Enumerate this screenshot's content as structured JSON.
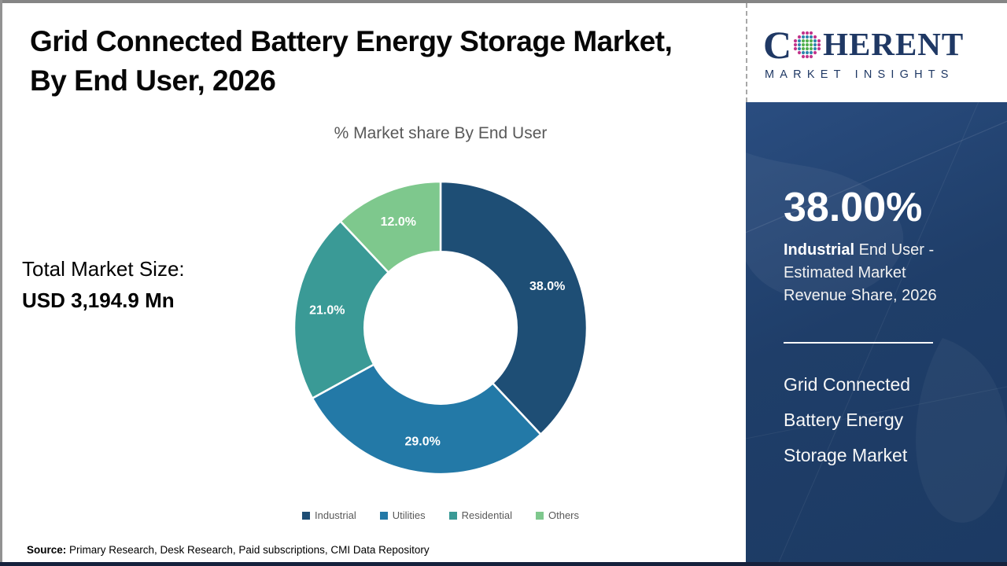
{
  "header": {
    "title_lines": [
      "Grid Connected Battery Energy Storage Market,",
      "By End User, 2026"
    ]
  },
  "left_panel": {
    "total_market_label": "Total Market Size:",
    "total_market_value": "USD 3,194.9 Mn"
  },
  "chart_data": {
    "type": "pie",
    "donut": true,
    "title": "% Market share By End User",
    "categories": [
      "Industrial",
      "Utilities",
      "Residential",
      "Others"
    ],
    "values": [
      38.0,
      29.0,
      21.0,
      12.0
    ],
    "labels": [
      "38.0%",
      "29.0%",
      "21.0%",
      "12.0%"
    ],
    "colors": [
      "#1e4e75",
      "#2379a7",
      "#3a9a96",
      "#7ec88d"
    ],
    "start_angle_deg": 0,
    "direction": "clockwise",
    "inner_radius_ratio": 0.52,
    "legend_position": "bottom",
    "label_color": "#ffffff"
  },
  "footer": {
    "source_label": "Source:",
    "source_text": " Primary Research, Desk Research, Paid subscriptions, CMI Data Repository"
  },
  "sidebar": {
    "logo": {
      "text_c": "C",
      "text_rest": "HERENT",
      "subtext": "MARKET INSIGHTS",
      "brand_navy": "#1f3864",
      "globe_colors": {
        "inner": "#53b04f",
        "mid": "#2e86ad",
        "outer": "#c2348b"
      }
    },
    "stat": {
      "value": "38.00%",
      "description_bold": "Industrial",
      "description_rest": " End User - Estimated Market Revenue Share, 2026"
    },
    "market_name": "Grid Connected Battery Energy Storage Market",
    "background_color": "#1f3e69"
  },
  "frame_colors": {
    "top_left_border": "#858585",
    "bottom_strip": "#15213c",
    "subtitle_gray": "#595959"
  }
}
